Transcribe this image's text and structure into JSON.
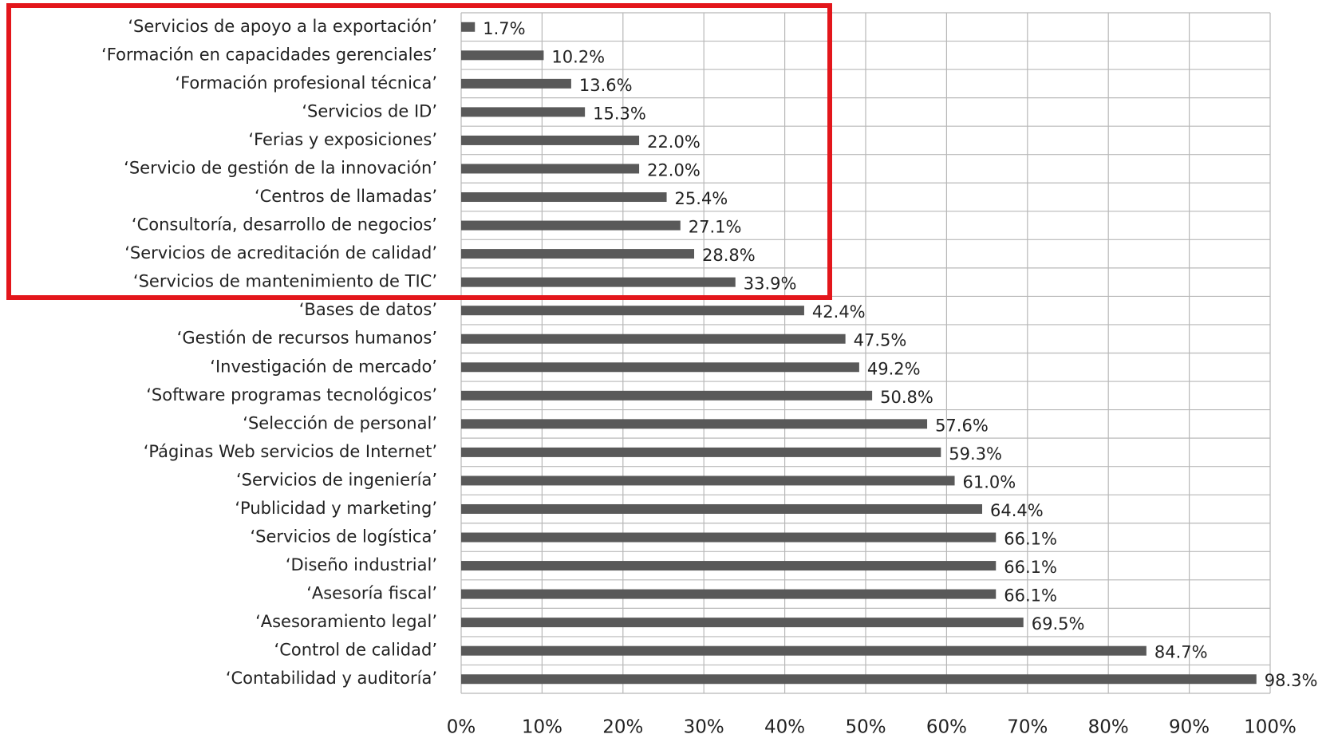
{
  "chart_data": {
    "type": "bar",
    "orientation": "horizontal",
    "categories": [
      "‘Servicios de apoyo a la exportación’",
      "‘Formación en capacidades gerenciales’",
      "‘Formación profesional técnica’",
      "‘Servicios de ID’",
      "‘Ferias y exposiciones’",
      "‘Servicio de gestión de la innovación’",
      "‘Centros de llamadas’",
      "‘Consultoría, desarrollo de negocios’",
      "‘Servicios de acreditación de calidad’",
      "‘Servicios de mantenimiento de TIC’",
      "‘Bases de datos’",
      "‘Gestión de recursos humanos’",
      "‘Investigación de mercado’",
      "‘Software programas tecnológicos’",
      "‘Selección de personal’",
      "‘Páginas Web servicios de Internet’",
      "‘Servicios de ingeniería’",
      "‘Publicidad y marketing’",
      "‘Servicios de logística’",
      "‘Diseño industrial’",
      "‘Asesoría fiscal’",
      "‘Asesoramiento legal’",
      "‘Control de calidad’",
      "‘Contabilidad y auditoría’"
    ],
    "values": [
      1.7,
      10.2,
      13.6,
      15.3,
      22.0,
      22.0,
      25.4,
      27.1,
      28.8,
      33.9,
      42.4,
      47.5,
      49.2,
      50.8,
      57.6,
      59.3,
      61.0,
      64.4,
      66.1,
      66.1,
      66.1,
      69.5,
      84.7,
      98.3
    ],
    "value_labels": [
      "1.7%",
      "10.2%",
      "13.6%",
      "15.3%",
      "22.0%",
      "22.0%",
      "25.4%",
      "27.1%",
      "28.8%",
      "33.9%",
      "42.4%",
      "47.5%",
      "49.2%",
      "50.8%",
      "57.6%",
      "59.3%",
      "61.0%",
      "64.4%",
      "66.1%",
      "66.1%",
      "66.1%",
      "69.5%",
      "84.7%",
      "98.3%"
    ],
    "color": "#595959",
    "xlim": [
      0,
      100
    ],
    "xticks": [
      {
        "value": 0,
        "label": "0%"
      },
      {
        "value": 10,
        "label": "10%"
      },
      {
        "value": 20,
        "label": "20%"
      },
      {
        "value": 30,
        "label": "30%"
      },
      {
        "value": 40,
        "label": "40%"
      },
      {
        "value": 50,
        "label": "50%"
      },
      {
        "value": 60,
        "label": "60%"
      },
      {
        "value": 70,
        "label": "70%"
      },
      {
        "value": 80,
        "label": "80%"
      },
      {
        "value": 90,
        "label": "90%"
      },
      {
        "value": 100,
        "label": "100%"
      }
    ],
    "grid": true
  }
}
